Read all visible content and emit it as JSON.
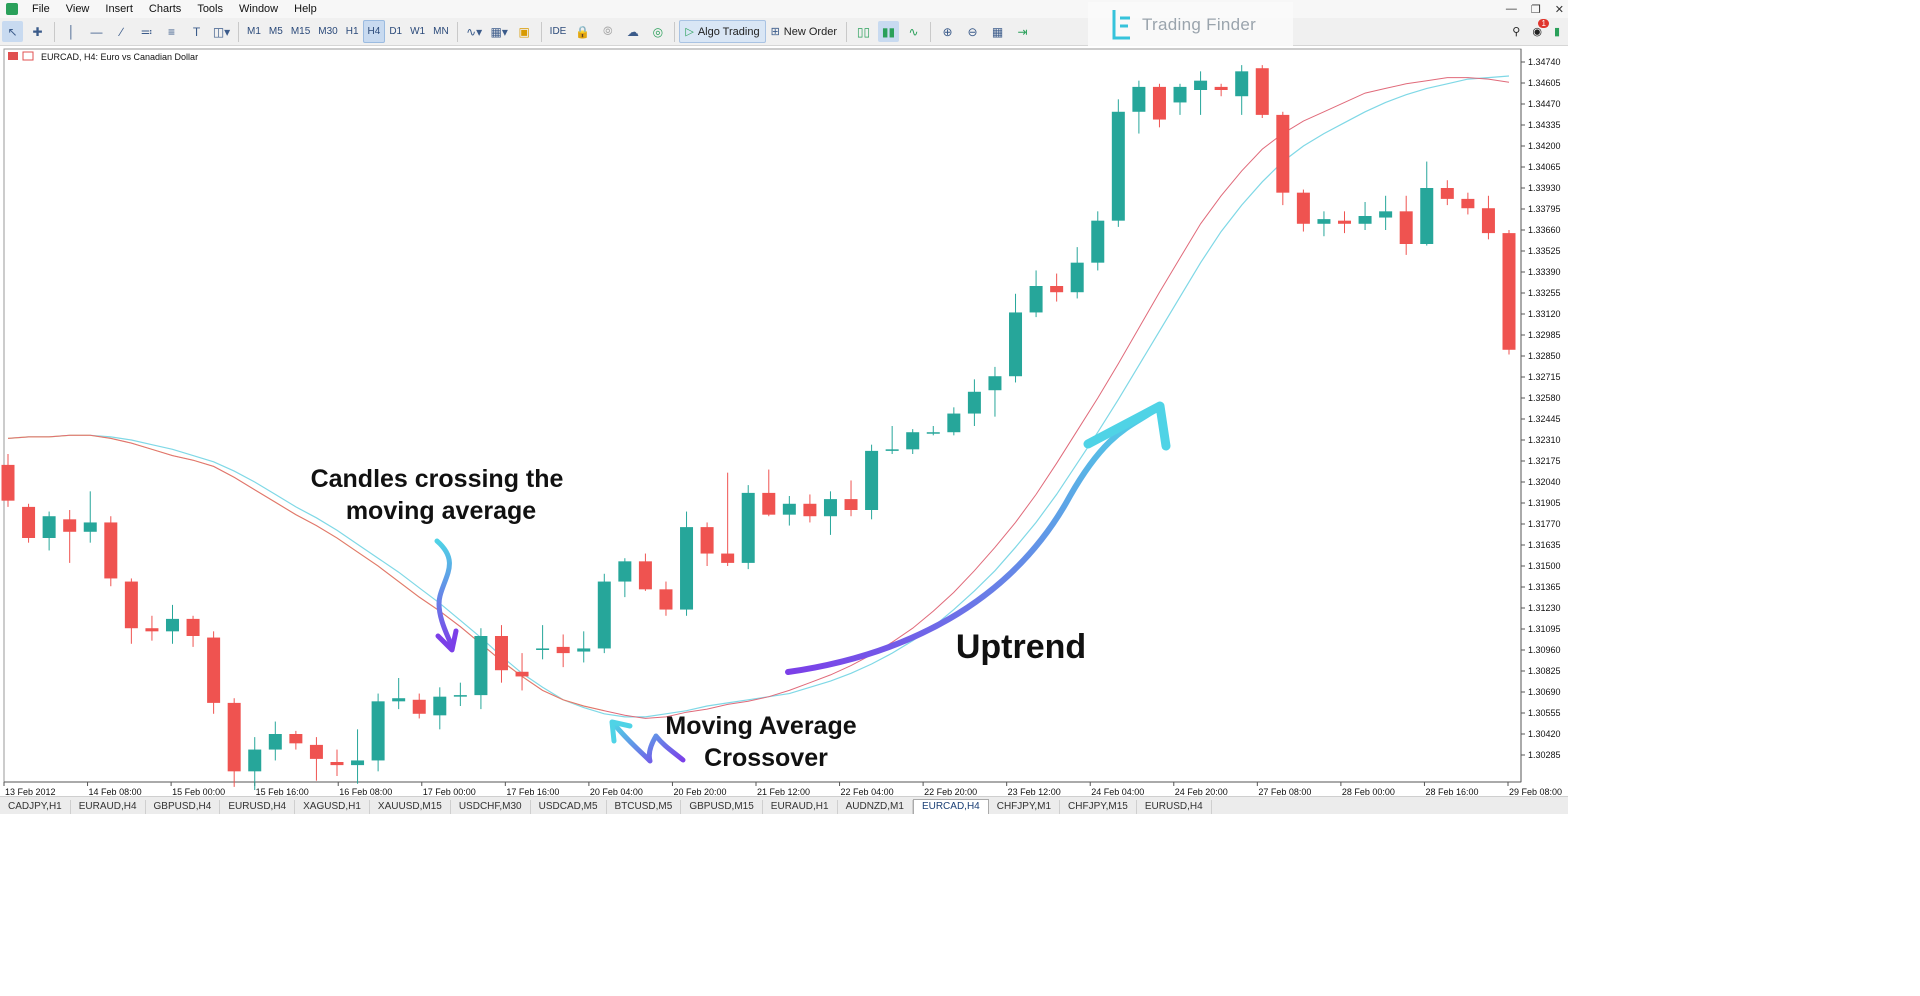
{
  "menubar": {
    "items": [
      "File",
      "View",
      "Insert",
      "Charts",
      "Tools",
      "Window",
      "Help"
    ]
  },
  "toolbar": {
    "timeframes": [
      "M1",
      "M5",
      "M15",
      "M30",
      "H1",
      "H4",
      "D1",
      "W1",
      "MN"
    ],
    "active_timeframe": "H4",
    "ide_label": "IDE",
    "algo_label": "Algo Trading",
    "new_order_label": "New Order",
    "notifications_count": "1"
  },
  "logo": {
    "text": "Trading Finder"
  },
  "chart": {
    "symbol_label": "EURCAD, H4:  Euro vs Canadian Dollar",
    "price_labels": [
      "1.34740",
      "1.34605",
      "1.34470",
      "1.34335",
      "1.34200",
      "1.34065",
      "1.33930",
      "1.33795",
      "1.33660",
      "1.33525",
      "1.33390",
      "1.33255",
      "1.33120",
      "1.32985",
      "1.32850",
      "1.32715",
      "1.32580",
      "1.32445",
      "1.32310",
      "1.32175",
      "1.32040",
      "1.31905",
      "1.31770",
      "1.31635",
      "1.31500",
      "1.31365",
      "1.31230",
      "1.31095",
      "1.30960",
      "1.30825",
      "1.30690",
      "1.30555",
      "1.30420",
      "1.30285"
    ],
    "time_labels": [
      "13 Feb 2012",
      "14 Feb 08:00",
      "15 Feb 00:00",
      "15 Feb 16:00",
      "16 Feb 08:00",
      "17 Feb 00:00",
      "17 Feb 16:00",
      "20 Feb 04:00",
      "20 Feb 20:00",
      "21 Feb 12:00",
      "22 Feb 04:00",
      "22 Feb 20:00",
      "23 Feb 12:00",
      "24 Feb 04:00",
      "24 Feb 20:00",
      "27 Feb 08:00",
      "28 Feb 00:00",
      "28 Feb 16:00",
      "29 Feb 08:00"
    ],
    "annotations": {
      "candles_cross_line1": "Candles crossing the",
      "candles_cross_line2": "moving average",
      "ma_cross_line1": "Moving Average",
      "ma_cross_line2": "Crossover",
      "uptrend": "Uptrend"
    },
    "colors": {
      "bull": "#26a69a",
      "bear": "#ef5350",
      "ma_fast": "#e06a7a",
      "ma_slow": "#7fd8e6",
      "ma_fast_early": "#f3e96c"
    },
    "candles": [
      {
        "o": 1.3215,
        "h": 1.3222,
        "l": 1.3188,
        "c": 1.3192
      },
      {
        "o": 1.3188,
        "h": 1.319,
        "l": 1.3165,
        "c": 1.3168
      },
      {
        "o": 1.3168,
        "h": 1.3185,
        "l": 1.316,
        "c": 1.3182
      },
      {
        "o": 1.318,
        "h": 1.3186,
        "l": 1.3152,
        "c": 1.3172
      },
      {
        "o": 1.3172,
        "h": 1.3198,
        "l": 1.3165,
        "c": 1.3178
      },
      {
        "o": 1.3178,
        "h": 1.3182,
        "l": 1.3137,
        "c": 1.3142
      },
      {
        "o": 1.314,
        "h": 1.3142,
        "l": 1.31,
        "c": 1.311
      },
      {
        "o": 1.311,
        "h": 1.3118,
        "l": 1.3102,
        "c": 1.3108
      },
      {
        "o": 1.3108,
        "h": 1.3125,
        "l": 1.31,
        "c": 1.3116
      },
      {
        "o": 1.3116,
        "h": 1.3118,
        "l": 1.3098,
        "c": 1.3105
      },
      {
        "o": 1.3104,
        "h": 1.3108,
        "l": 1.3055,
        "c": 1.3062
      },
      {
        "o": 1.3062,
        "h": 1.3065,
        "l": 1.3008,
        "c": 1.3018
      },
      {
        "o": 1.3018,
        "h": 1.304,
        "l": 1.3006,
        "c": 1.3032
      },
      {
        "o": 1.3032,
        "h": 1.305,
        "l": 1.3025,
        "c": 1.3042
      },
      {
        "o": 1.3042,
        "h": 1.3044,
        "l": 1.3032,
        "c": 1.3036
      },
      {
        "o": 1.3035,
        "h": 1.304,
        "l": 1.3012,
        "c": 1.3026
      },
      {
        "o": 1.3024,
        "h": 1.3032,
        "l": 1.3015,
        "c": 1.3022
      },
      {
        "o": 1.3022,
        "h": 1.3045,
        "l": 1.301,
        "c": 1.3025
      },
      {
        "o": 1.3025,
        "h": 1.3068,
        "l": 1.3018,
        "c": 1.3063
      },
      {
        "o": 1.3063,
        "h": 1.3078,
        "l": 1.3058,
        "c": 1.3065
      },
      {
        "o": 1.3064,
        "h": 1.3068,
        "l": 1.3052,
        "c": 1.3055
      },
      {
        "o": 1.3054,
        "h": 1.3072,
        "l": 1.3045,
        "c": 1.3066
      },
      {
        "o": 1.3066,
        "h": 1.3075,
        "l": 1.306,
        "c": 1.3067
      },
      {
        "o": 1.3067,
        "h": 1.311,
        "l": 1.3058,
        "c": 1.3105
      },
      {
        "o": 1.3105,
        "h": 1.3112,
        "l": 1.3075,
        "c": 1.3083
      },
      {
        "o": 1.3082,
        "h": 1.3094,
        "l": 1.307,
        "c": 1.3079
      },
      {
        "o": 1.3096,
        "h": 1.3112,
        "l": 1.309,
        "c": 1.3097
      },
      {
        "o": 1.3098,
        "h": 1.3106,
        "l": 1.3085,
        "c": 1.3094
      },
      {
        "o": 1.3095,
        "h": 1.3108,
        "l": 1.3088,
        "c": 1.3097
      },
      {
        "o": 1.3097,
        "h": 1.3145,
        "l": 1.3094,
        "c": 1.314
      },
      {
        "o": 1.314,
        "h": 1.3155,
        "l": 1.313,
        "c": 1.3153
      },
      {
        "o": 1.3153,
        "h": 1.3158,
        "l": 1.3134,
        "c": 1.3135
      },
      {
        "o": 1.3135,
        "h": 1.314,
        "l": 1.3118,
        "c": 1.3122
      },
      {
        "o": 1.3122,
        "h": 1.3185,
        "l": 1.3118,
        "c": 1.3175
      },
      {
        "o": 1.3175,
        "h": 1.3178,
        "l": 1.315,
        "c": 1.3158
      },
      {
        "o": 1.3158,
        "h": 1.321,
        "l": 1.315,
        "c": 1.3152
      },
      {
        "o": 1.3152,
        "h": 1.3202,
        "l": 1.3148,
        "c": 1.3197
      },
      {
        "o": 1.3197,
        "h": 1.3212,
        "l": 1.3182,
        "c": 1.3183
      },
      {
        "o": 1.3183,
        "h": 1.3195,
        "l": 1.3176,
        "c": 1.319
      },
      {
        "o": 1.319,
        "h": 1.3196,
        "l": 1.3178,
        "c": 1.3182
      },
      {
        "o": 1.3182,
        "h": 1.3198,
        "l": 1.317,
        "c": 1.3193
      },
      {
        "o": 1.3193,
        "h": 1.3205,
        "l": 1.3182,
        "c": 1.3186
      },
      {
        "o": 1.3186,
        "h": 1.3228,
        "l": 1.318,
        "c": 1.3224
      },
      {
        "o": 1.3224,
        "h": 1.324,
        "l": 1.3222,
        "c": 1.3225
      },
      {
        "o": 1.3225,
        "h": 1.3238,
        "l": 1.3222,
        "c": 1.3236
      },
      {
        "o": 1.3236,
        "h": 1.324,
        "l": 1.3234,
        "c": 1.3236
      },
      {
        "o": 1.3236,
        "h": 1.3252,
        "l": 1.3234,
        "c": 1.3248
      },
      {
        "o": 1.3248,
        "h": 1.327,
        "l": 1.324,
        "c": 1.3262
      },
      {
        "o": 1.3263,
        "h": 1.3278,
        "l": 1.3246,
        "c": 1.3272
      },
      {
        "o": 1.3272,
        "h": 1.3325,
        "l": 1.3268,
        "c": 1.3313
      },
      {
        "o": 1.3313,
        "h": 1.334,
        "l": 1.331,
        "c": 1.333
      },
      {
        "o": 1.333,
        "h": 1.3338,
        "l": 1.332,
        "c": 1.3326
      },
      {
        "o": 1.3326,
        "h": 1.3355,
        "l": 1.3322,
        "c": 1.3345
      },
      {
        "o": 1.3345,
        "h": 1.3378,
        "l": 1.334,
        "c": 1.3372
      },
      {
        "o": 1.3372,
        "h": 1.345,
        "l": 1.3368,
        "c": 1.3442
      },
      {
        "o": 1.3442,
        "h": 1.3462,
        "l": 1.3428,
        "c": 1.3458
      },
      {
        "o": 1.3458,
        "h": 1.346,
        "l": 1.3432,
        "c": 1.3437
      },
      {
        "o": 1.3448,
        "h": 1.346,
        "l": 1.344,
        "c": 1.3458
      },
      {
        "o": 1.3456,
        "h": 1.3468,
        "l": 1.344,
        "c": 1.3462
      },
      {
        "o": 1.3458,
        "h": 1.346,
        "l": 1.3452,
        "c": 1.3456
      },
      {
        "o": 1.3452,
        "h": 1.3472,
        "l": 1.344,
        "c": 1.3468
      },
      {
        "o": 1.347,
        "h": 1.3472,
        "l": 1.3438,
        "c": 1.344
      },
      {
        "o": 1.344,
        "h": 1.3442,
        "l": 1.3382,
        "c": 1.339
      },
      {
        "o": 1.339,
        "h": 1.3392,
        "l": 1.3365,
        "c": 1.337
      },
      {
        "o": 1.337,
        "h": 1.3378,
        "l": 1.3362,
        "c": 1.3373
      },
      {
        "o": 1.3372,
        "h": 1.3378,
        "l": 1.3364,
        "c": 1.337
      },
      {
        "o": 1.337,
        "h": 1.3384,
        "l": 1.3366,
        "c": 1.3375
      },
      {
        "o": 1.3374,
        "h": 1.3388,
        "l": 1.3366,
        "c": 1.3378
      },
      {
        "o": 1.3378,
        "h": 1.3388,
        "l": 1.335,
        "c": 1.3357
      },
      {
        "o": 1.3357,
        "h": 1.341,
        "l": 1.3356,
        "c": 1.3393
      },
      {
        "o": 1.3393,
        "h": 1.3398,
        "l": 1.3382,
        "c": 1.3386
      },
      {
        "o": 1.3386,
        "h": 1.339,
        "l": 1.3376,
        "c": 1.338
      },
      {
        "o": 1.338,
        "h": 1.3388,
        "l": 1.336,
        "c": 1.3364
      },
      {
        "o": 1.3364,
        "h": 1.3366,
        "l": 1.3286,
        "c": 1.3289
      }
    ],
    "ma_fast": [
      1.3232,
      1.3233,
      1.3233,
      1.3234,
      1.3234,
      1.3232,
      1.3229,
      1.3225,
      1.3221,
      1.3218,
      1.3214,
      1.3207,
      1.3199,
      1.3191,
      1.3183,
      1.3176,
      1.3168,
      1.3159,
      1.315,
      1.314,
      1.313,
      1.3121,
      1.3111,
      1.31,
      1.3089,
      1.3079,
      1.307,
      1.3064,
      1.306,
      1.3057,
      1.3054,
      1.3052,
      1.3053,
      1.3056,
      1.3058,
      1.3061,
      1.3063,
      1.3066,
      1.307,
      1.3075,
      1.308,
      1.3086,
      1.3093,
      1.3101,
      1.311,
      1.3121,
      1.3133,
      1.3147,
      1.3162,
      1.3178,
      1.3196,
      1.3216,
      1.3237,
      1.3258,
      1.328,
      1.3303,
      1.3326,
      1.3348,
      1.337,
      1.3388,
      1.3404,
      1.3418,
      1.3428,
      1.3436,
      1.3442,
      1.3448,
      1.3454,
      1.3457,
      1.346,
      1.3462,
      1.3464,
      1.3464,
      1.3463,
      1.3461
    ],
    "ma_slow": [
      1.3232,
      1.3233,
      1.3233,
      1.3234,
      1.3234,
      1.3233,
      1.3231,
      1.3228,
      1.3225,
      1.3221,
      1.3217,
      1.3211,
      1.3204,
      1.3196,
      1.3188,
      1.3181,
      1.3173,
      1.3164,
      1.3155,
      1.3146,
      1.3136,
      1.3126,
      1.3115,
      1.3104,
      1.3092,
      1.3081,
      1.3072,
      1.3064,
      1.3059,
      1.3055,
      1.3053,
      1.3053,
      1.3055,
      1.3057,
      1.306,
      1.3062,
      1.3064,
      1.3066,
      1.3068,
      1.3072,
      1.3076,
      1.3081,
      1.3087,
      1.3094,
      1.3102,
      1.3111,
      1.3122,
      1.3134,
      1.3147,
      1.3162,
      1.3178,
      1.3196,
      1.3216,
      1.3236,
      1.3257,
      1.3279,
      1.3301,
      1.3323,
      1.3345,
      1.3365,
      1.3382,
      1.3397,
      1.341,
      1.342,
      1.3428,
      1.3435,
      1.3442,
      1.3448,
      1.3453,
      1.3457,
      1.346,
      1.3463,
      1.3464,
      1.3465
    ]
  },
  "tabs": [
    "CADJPY,H1",
    "EURAUD,H4",
    "GBPUSD,H4",
    "EURUSD,H4",
    "XAGUSD,H1",
    "XAUUSD,M15",
    "USDCHF,M30",
    "USDCAD,M5",
    "BTCUSD,M5",
    "GBPUSD,M15",
    "EURAUD,H1",
    "AUDNZD,M1",
    "EURCAD,H4",
    "CHFJPY,M1",
    "CHFJPY,M15",
    "EURUSD,H4"
  ],
  "active_tab": "EURCAD,H4"
}
